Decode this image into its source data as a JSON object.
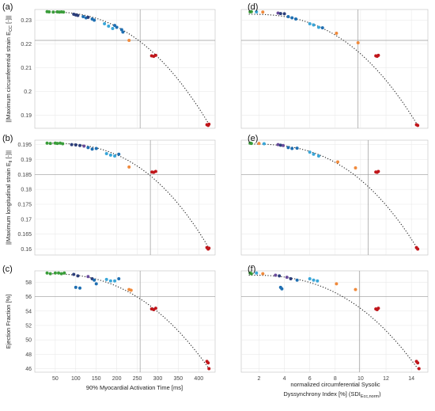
{
  "figure": {
    "x_label_left": "90% Myocardial Activation Time [ms]",
    "x_label_right_line1": "normalized circumferential Sysolic",
    "x_label_right_line2": "Dyssynchrony Index [%] (SDI",
    "x_label_right_sub": "Ecc,norm",
    "x_label_right_close": ")"
  },
  "colors": {
    "green": "#3a9d3a",
    "navy": "#2c3e7a",
    "purple": "#6a4c9c",
    "blue": "#1f6fb2",
    "lightblue": "#3aa6d8",
    "orange": "#f08a3c",
    "red": "#c0161b",
    "fit": "#222222",
    "grid": "#e6e6e6"
  },
  "chart_data": [
    {
      "panel": "(a)",
      "type": "scatter",
      "ylabel_pre": "||Maximum circumferential strain E",
      "ylabel_sub": "CC",
      "ylabel_post": " [-]||",
      "xlim": [
        0,
        440
      ],
      "xticks": [
        50,
        100,
        150,
        200,
        250,
        300,
        350,
        400
      ],
      "ylim": [
        0.1845,
        0.2345
      ],
      "yticks": [
        0.19,
        0.2,
        0.21,
        0.22,
        0.23
      ],
      "vline": 257,
      "hline": 0.2215,
      "fit": {
        "p0": 0.2335,
        "p": 2.4,
        "xmin": 30,
        "xmax": 425
      },
      "show_xticks": false,
      "points": [
        [
          30,
          0.2336,
          "green"
        ],
        [
          35,
          0.2335,
          "green"
        ],
        [
          45,
          0.2334,
          "green"
        ],
        [
          55,
          0.2335,
          "green"
        ],
        [
          60,
          0.2334,
          "green"
        ],
        [
          65,
          0.2335,
          "green"
        ],
        [
          70,
          0.2334,
          "green"
        ],
        [
          95,
          0.2325,
          "navy"
        ],
        [
          100,
          0.2322,
          "navy"
        ],
        [
          105,
          0.232,
          "navy"
        ],
        [
          118,
          0.2315,
          "blue"
        ],
        [
          125,
          0.231,
          "blue"
        ],
        [
          130,
          0.2312,
          "navy"
        ],
        [
          140,
          0.2305,
          "blue"
        ],
        [
          145,
          0.23,
          "blue"
        ],
        [
          170,
          0.2285,
          "lightblue"
        ],
        [
          180,
          0.2275,
          "lightblue"
        ],
        [
          190,
          0.2265,
          "lightblue"
        ],
        [
          195,
          0.2278,
          "blue"
        ],
        [
          200,
          0.227,
          "blue"
        ],
        [
          212,
          0.226,
          "blue"
        ],
        [
          215,
          0.225,
          "blue"
        ],
        [
          230,
          0.2215,
          "orange"
        ],
        [
          285,
          0.215,
          "red"
        ],
        [
          290,
          0.2148,
          "red"
        ],
        [
          295,
          0.2152,
          "red"
        ],
        [
          420,
          0.186,
          "red"
        ],
        [
          423,
          0.1857,
          "red"
        ],
        [
          425,
          0.1862,
          "red"
        ]
      ]
    },
    {
      "panel": "(b)",
      "type": "scatter",
      "ylabel_pre": "||Maximum longitudinal strain E",
      "ylabel_sub": "ll",
      "ylabel_post": " [-]||",
      "xlim": [
        0,
        440
      ],
      "xticks": [
        50,
        100,
        150,
        200,
        250,
        300,
        350,
        400
      ],
      "ylim": [
        0.158,
        0.1965
      ],
      "yticks": [
        0.16,
        0.165,
        0.17,
        0.175,
        0.18,
        0.185,
        0.19,
        0.195
      ],
      "vline": 282,
      "hline": 0.185,
      "fit": {
        "p0": 0.1955,
        "p": 2.6,
        "xmin": 30,
        "xmax": 425
      },
      "show_xticks": false,
      "points": [
        [
          30,
          0.1955,
          "green"
        ],
        [
          38,
          0.1954,
          "green"
        ],
        [
          50,
          0.1955,
          "green"
        ],
        [
          55,
          0.1954,
          "green"
        ],
        [
          62,
          0.1955,
          "green"
        ],
        [
          68,
          0.1953,
          "green"
        ],
        [
          90,
          0.195,
          "navy"
        ],
        [
          100,
          0.1949,
          "navy"
        ],
        [
          110,
          0.1947,
          "navy"
        ],
        [
          120,
          0.1945,
          "purple"
        ],
        [
          130,
          0.194,
          "blue"
        ],
        [
          140,
          0.1935,
          "blue"
        ],
        [
          150,
          0.1937,
          "blue"
        ],
        [
          175,
          0.192,
          "lightblue"
        ],
        [
          185,
          0.1915,
          "lightblue"
        ],
        [
          195,
          0.1912,
          "lightblue"
        ],
        [
          205,
          0.1918,
          "blue"
        ],
        [
          230,
          0.1875,
          "orange"
        ],
        [
          286,
          0.1858,
          "red"
        ],
        [
          290,
          0.1857,
          "red"
        ],
        [
          295,
          0.186,
          "red"
        ],
        [
          420,
          0.1605,
          "red"
        ],
        [
          423,
          0.16,
          "red"
        ],
        [
          425,
          0.1603,
          "red"
        ]
      ]
    },
    {
      "panel": "(c)",
      "type": "scatter",
      "ylabel_pre": "Ejection Fraction [%]",
      "ylabel_sub": "",
      "ylabel_post": "",
      "xlim": [
        0,
        440
      ],
      "xticks": [
        50,
        100,
        150,
        200,
        250,
        300,
        350,
        400
      ],
      "ylim": [
        45.5,
        59.6
      ],
      "yticks": [
        46,
        48,
        50,
        52,
        54,
        56,
        58
      ],
      "vline": 257,
      "hline": 56.0,
      "fit": {
        "p0": 59.2,
        "p": 2.4,
        "xmin": 30,
        "xmax": 425
      },
      "show_xticks": true,
      "points": [
        [
          30,
          59.3,
          "green"
        ],
        [
          38,
          59.2,
          "green"
        ],
        [
          50,
          59.3,
          "green"
        ],
        [
          58,
          59.3,
          "green"
        ],
        [
          65,
          59.2,
          "green"
        ],
        [
          72,
          59.3,
          "green"
        ],
        [
          95,
          59.1,
          "navy"
        ],
        [
          105,
          58.9,
          "navy"
        ],
        [
          100,
          57.3,
          "blue"
        ],
        [
          110,
          57.2,
          "blue"
        ],
        [
          130,
          58.8,
          "purple"
        ],
        [
          140,
          58.5,
          "navy"
        ],
        [
          145,
          58.3,
          "blue"
        ],
        [
          150,
          57.8,
          "blue"
        ],
        [
          175,
          58.4,
          "lightblue"
        ],
        [
          185,
          58.2,
          "lightblue"
        ],
        [
          195,
          58.2,
          "lightblue"
        ],
        [
          205,
          58.5,
          "blue"
        ],
        [
          230,
          57.0,
          "orange"
        ],
        [
          235,
          56.9,
          "orange"
        ],
        [
          285,
          54.3,
          "red"
        ],
        [
          290,
          54.2,
          "red"
        ],
        [
          295,
          54.4,
          "red"
        ],
        [
          420,
          47.0,
          "red"
        ],
        [
          423,
          46.8,
          "red"
        ],
        [
          425,
          46.0,
          "red"
        ]
      ]
    },
    {
      "panel": "(d)",
      "type": "scatter",
      "xlim": [
        0.6,
        15.3
      ],
      "xticks": [
        2,
        4,
        6,
        8,
        10,
        12,
        14
      ],
      "ylim": [
        0.1845,
        0.2345
      ],
      "yticks": [],
      "vline": 9.8,
      "hline": 0.2215,
      "fit": {
        "p0": 0.2325,
        "p": 2.5,
        "xmin": 1.2,
        "xmax": 14.5
      },
      "show_xticks": false,
      "points": [
        [
          1.3,
          0.2335,
          "green"
        ],
        [
          1.4,
          0.2336,
          "green"
        ],
        [
          1.8,
          0.2335,
          "lightblue"
        ],
        [
          2.3,
          0.2334,
          "orange"
        ],
        [
          3.5,
          0.233,
          "purple"
        ],
        [
          3.7,
          0.2328,
          "navy"
        ],
        [
          4.0,
          0.2327,
          "navy"
        ],
        [
          4.3,
          0.2315,
          "blue"
        ],
        [
          4.6,
          0.231,
          "blue"
        ],
        [
          4.9,
          0.2305,
          "blue"
        ],
        [
          6.0,
          0.2285,
          "lightblue"
        ],
        [
          6.3,
          0.228,
          "lightblue"
        ],
        [
          6.7,
          0.227,
          "lightblue"
        ],
        [
          7.0,
          0.2268,
          "blue"
        ],
        [
          8.1,
          0.2245,
          "orange"
        ],
        [
          9.8,
          0.2205,
          "orange"
        ],
        [
          11.2,
          0.215,
          "red"
        ],
        [
          11.3,
          0.2148,
          "red"
        ],
        [
          11.4,
          0.2152,
          "red"
        ],
        [
          14.4,
          0.186,
          "red"
        ],
        [
          14.5,
          0.1857,
          "red"
        ]
      ]
    },
    {
      "panel": "(e)",
      "type": "scatter",
      "xlim": [
        0.6,
        15.3
      ],
      "xticks": [
        2,
        4,
        6,
        8,
        10,
        12,
        14
      ],
      "ylim": [
        0.158,
        0.1965
      ],
      "yticks": [],
      "vline": 10.6,
      "hline": 0.185,
      "fit": {
        "p0": 0.1952,
        "p": 2.6,
        "xmin": 1.2,
        "xmax": 14.5
      },
      "show_xticks": false,
      "points": [
        [
          1.3,
          0.1955,
          "green"
        ],
        [
          1.4,
          0.1954,
          "green"
        ],
        [
          2.0,
          0.1954,
          "orange"
        ],
        [
          2.4,
          0.1953,
          "lightblue"
        ],
        [
          3.5,
          0.195,
          "purple"
        ],
        [
          3.7,
          0.1948,
          "navy"
        ],
        [
          3.9,
          0.1947,
          "purple"
        ],
        [
          4.3,
          0.194,
          "blue"
        ],
        [
          4.6,
          0.1937,
          "blue"
        ],
        [
          5.0,
          0.1938,
          "blue"
        ],
        [
          6.0,
          0.1925,
          "lightblue"
        ],
        [
          6.3,
          0.1918,
          "lightblue"
        ],
        [
          6.7,
          0.1912,
          "lightblue"
        ],
        [
          8.2,
          0.1892,
          "orange"
        ],
        [
          9.6,
          0.1872,
          "orange"
        ],
        [
          11.2,
          0.1858,
          "red"
        ],
        [
          11.3,
          0.1857,
          "red"
        ],
        [
          11.4,
          0.186,
          "red"
        ],
        [
          14.4,
          0.1605,
          "red"
        ],
        [
          14.5,
          0.16,
          "red"
        ]
      ]
    },
    {
      "panel": "(f)",
      "type": "scatter",
      "xlim": [
        0.6,
        15.3
      ],
      "xticks": [
        2,
        4,
        6,
        8,
        10,
        12,
        14
      ],
      "ylim": [
        45.5,
        59.6
      ],
      "yticks": [],
      "vline": 9.9,
      "hline": 56.0,
      "fit": {
        "p0": 59.0,
        "p": 2.5,
        "xmin": 1.2,
        "xmax": 14.5
      },
      "show_xticks": true,
      "points": [
        [
          1.3,
          59.3,
          "green"
        ],
        [
          1.4,
          59.2,
          "green"
        ],
        [
          1.8,
          59.3,
          "lightblue"
        ],
        [
          2.3,
          59.2,
          "orange"
        ],
        [
          3.3,
          59.0,
          "purple"
        ],
        [
          3.6,
          58.9,
          "navy"
        ],
        [
          3.7,
          57.3,
          "blue"
        ],
        [
          3.8,
          57.1,
          "blue"
        ],
        [
          4.2,
          58.7,
          "purple"
        ],
        [
          4.5,
          58.5,
          "navy"
        ],
        [
          5.0,
          58.3,
          "blue"
        ],
        [
          6.0,
          58.5,
          "lightblue"
        ],
        [
          6.3,
          58.3,
          "lightblue"
        ],
        [
          6.6,
          58.2,
          "lightblue"
        ],
        [
          8.1,
          57.8,
          "orange"
        ],
        [
          9.6,
          57.0,
          "orange"
        ],
        [
          11.2,
          54.3,
          "red"
        ],
        [
          11.3,
          54.2,
          "red"
        ],
        [
          11.4,
          54.4,
          "red"
        ],
        [
          14.4,
          47.0,
          "red"
        ],
        [
          14.5,
          46.8,
          "red"
        ],
        [
          14.6,
          46.0,
          "red"
        ]
      ]
    }
  ]
}
